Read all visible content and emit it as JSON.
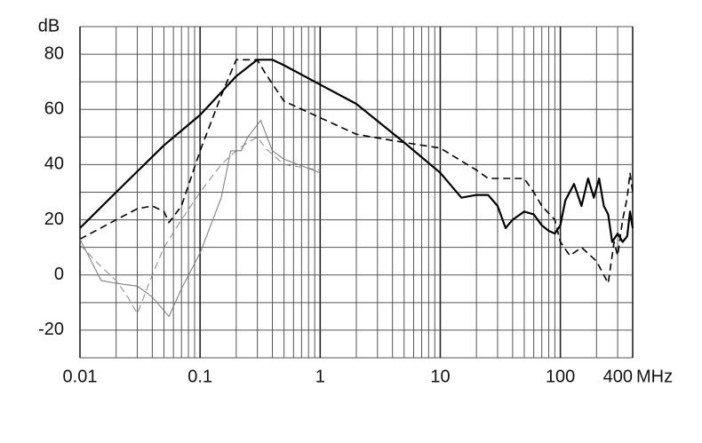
{
  "chart_data": {
    "type": "line",
    "x_label": "MHz",
    "y_label": "dB",
    "log_x": true,
    "grid": true,
    "xlim": [
      0.01,
      400
    ],
    "ylim": [
      -30,
      90
    ],
    "xticks": [
      0.01,
      0.1,
      1,
      10,
      100,
      400
    ],
    "yticks": [
      -20,
      0,
      20,
      40,
      60,
      80
    ],
    "y_minor_ticks": [
      -30,
      -10,
      10,
      30,
      50,
      70,
      90
    ],
    "x_minor_ticks": [
      0.02,
      0.03,
      0.04,
      0.05,
      0.06,
      0.07,
      0.08,
      0.09,
      0.2,
      0.3,
      0.4,
      0.5,
      0.6,
      0.7,
      0.8,
      0.9,
      2,
      3,
      4,
      5,
      6,
      7,
      8,
      9,
      20,
      30,
      40,
      50,
      60,
      70,
      80,
      90,
      200,
      300
    ],
    "series": [
      {
        "color": "#000000",
        "style": "solid",
        "width": 2.2,
        "x": [
          0.01,
          0.02,
          0.05,
          0.1,
          0.2,
          0.3,
          0.4,
          0.5,
          1,
          2,
          5,
          10,
          15,
          20,
          25,
          30,
          35,
          40,
          50,
          60,
          70,
          80,
          90,
          100,
          110,
          130,
          150,
          170,
          190,
          210,
          230,
          250,
          270,
          300,
          330,
          360,
          380,
          400
        ],
        "values": [
          17,
          30,
          47,
          58,
          72,
          78,
          78,
          76,
          69,
          62,
          48,
          37,
          28,
          29,
          29,
          25,
          17,
          20,
          23,
          22,
          18,
          16,
          15,
          18,
          27,
          33,
          25,
          35,
          28,
          35,
          25,
          22,
          12,
          15,
          12,
          14,
          23,
          17
        ]
      },
      {
        "color": "#000000",
        "style": "dashed",
        "width": 1.6,
        "x": [
          0.01,
          0.02,
          0.03,
          0.04,
          0.05,
          0.055,
          0.07,
          0.1,
          0.15,
          0.2,
          0.3,
          0.35,
          0.5,
          1,
          2,
          5,
          10,
          20,
          25,
          50,
          60,
          70,
          90,
          100,
          120,
          150,
          200,
          250,
          280,
          300,
          330,
          360,
          380,
          400
        ],
        "values": [
          13,
          20,
          24,
          25,
          23,
          19,
          25,
          45,
          65,
          78,
          78,
          73,
          63,
          57,
          51,
          48,
          46,
          38,
          35,
          35,
          30,
          25,
          20,
          12,
          7,
          10,
          5,
          -3,
          12,
          7,
          20,
          28,
          37,
          30
        ]
      },
      {
        "color": "#888888",
        "style": "dashed",
        "width": 1,
        "x": [
          0.01,
          0.015,
          0.02,
          0.025,
          0.03,
          0.04,
          0.05,
          0.07,
          0.1,
          0.15,
          0.2,
          0.25,
          0.3,
          0.35,
          0.5,
          1
        ],
        "values": [
          11,
          3,
          -2,
          -8,
          -14,
          0,
          10,
          20,
          30,
          40,
          45,
          48,
          50,
          46,
          40,
          38
        ]
      },
      {
        "color": "#777777",
        "style": "solid",
        "width": 1,
        "x": [
          0.01,
          0.015,
          0.02,
          0.03,
          0.04,
          0.055,
          0.07,
          0.1,
          0.15,
          0.18,
          0.22,
          0.25,
          0.32,
          0.4,
          0.5,
          1
        ],
        "values": [
          13,
          -2,
          -3,
          -4,
          -8,
          -15,
          -5,
          8,
          28,
          45,
          45,
          50,
          56,
          45,
          42,
          37
        ]
      }
    ]
  }
}
